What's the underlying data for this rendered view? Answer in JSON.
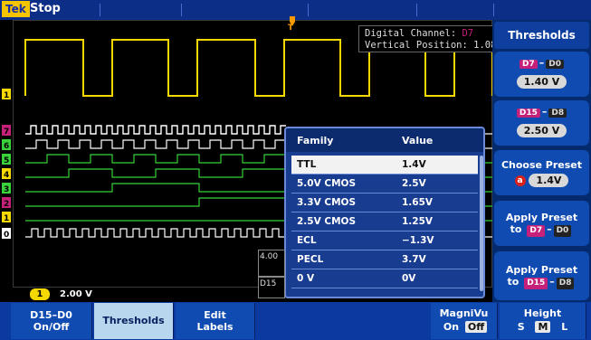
{
  "top_bar": {
    "logo": "Tek",
    "run_status": "Stop"
  },
  "readout": {
    "line1_label": "Digital Channel:",
    "line1_value": "D7",
    "line2_label": "Vertical Position:",
    "line2_value": "1.08"
  },
  "side_menu": {
    "title": "Thresholds",
    "group1": {
      "range_hi": "D7",
      "range_lo": "D0",
      "value": "1.40 V"
    },
    "group2": {
      "range_hi": "D15",
      "range_lo": "D8",
      "value": "2.50 V"
    },
    "choose_preset": {
      "label": "Choose Preset",
      "knob": "a",
      "value": "1.4V"
    },
    "apply_low": {
      "line1": "Apply Preset",
      "prefix": "to",
      "range_hi": "D7",
      "range_lo": "D0"
    },
    "apply_high": {
      "line1": "Apply Preset",
      "prefix": "to",
      "range_hi": "D15",
      "range_lo": "D8"
    }
  },
  "preset_table": {
    "headers": {
      "family": "Family",
      "value": "Value"
    },
    "rows": [
      {
        "family": "TTL",
        "value": "1.4V",
        "selected": true
      },
      {
        "family": "5.0V CMOS",
        "value": "2.5V",
        "selected": false
      },
      {
        "family": "3.3V CMOS",
        "value": "1.65V",
        "selected": false
      },
      {
        "family": "2.5V CMOS",
        "value": "1.25V",
        "selected": false
      },
      {
        "family": "ECL",
        "value": "−1.3V",
        "selected": false
      },
      {
        "family": "PECL",
        "value": "3.7V",
        "selected": false
      },
      {
        "family": "0 V",
        "value": "0V",
        "selected": false
      }
    ]
  },
  "channel_labels": [
    "1",
    "7",
    "6",
    "5",
    "4",
    "3",
    "2",
    "1",
    "0"
  ],
  "ch1_scale": {
    "channel": "1",
    "value": "2.00 V"
  },
  "horizontal_readout": {
    "line1": "4.00",
    "line2": "D15"
  },
  "bottom_menu": {
    "d15_d0": {
      "line1": "D15–D0",
      "line2": "On/Off"
    },
    "thresholds": "Thresholds",
    "edit_labels": {
      "line1": "Edit",
      "line2": "Labels"
    },
    "magnivu": {
      "label": "MagniVu",
      "on": "On",
      "off": "Off"
    },
    "height": {
      "label": "Height",
      "s": "S",
      "m": "M",
      "l": "L"
    }
  },
  "colors": {
    "ch1": "#f5d800",
    "digital_bright": "#ffffff",
    "digital_green": "#3ad23a",
    "d7": "#c5217a",
    "menu_blue": "#0f4bb0",
    "selected_button": "#b9d6ef"
  }
}
